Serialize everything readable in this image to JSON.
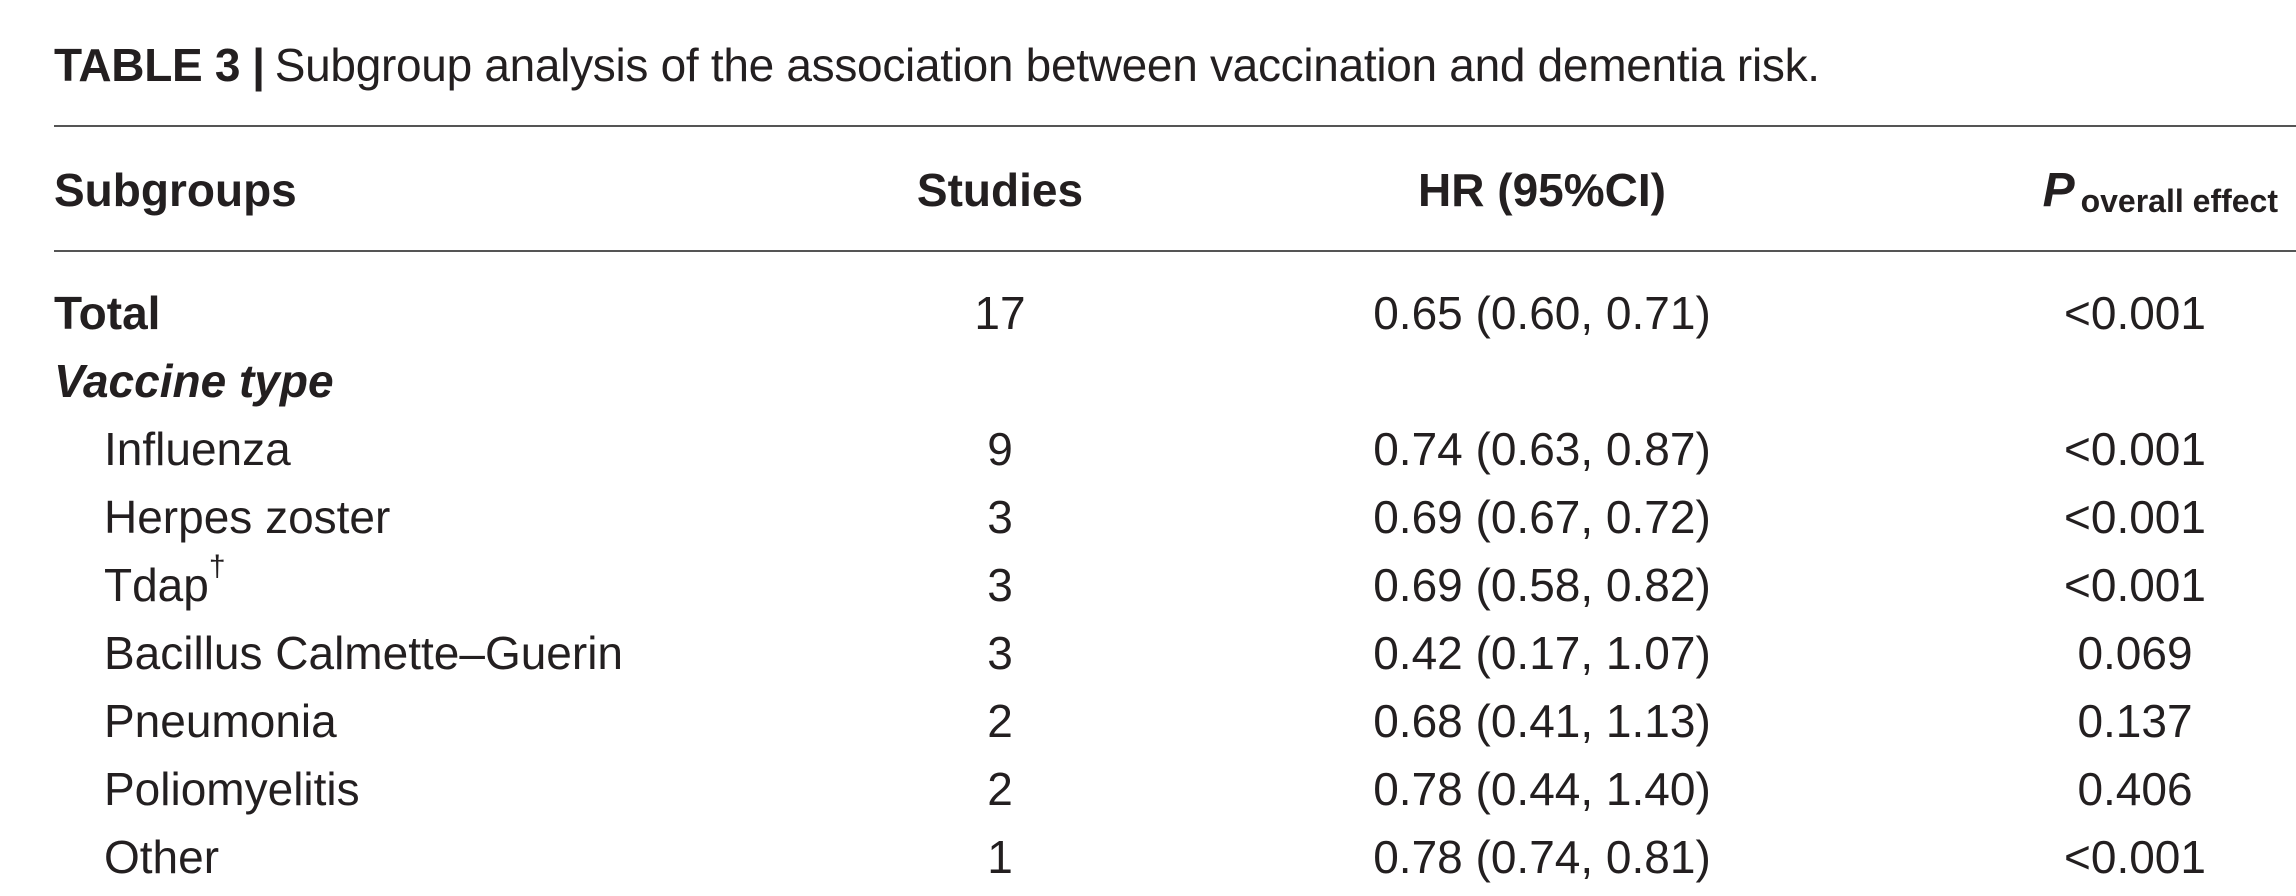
{
  "caption": {
    "tag": "TABLE 3",
    "separator": "|",
    "text": "Subgroup analysis of the association between vaccination and dementia risk."
  },
  "table": {
    "headers": {
      "subgroups": "Subgroups",
      "studies": "Studies",
      "hr": "HR (95%CI)",
      "p_main": "P",
      "p_sub": "overall effect"
    },
    "total": {
      "label": "Total",
      "studies": "17",
      "hr": "0.65 (0.60, 0.71)",
      "p": "<0.001"
    },
    "section_label": "Vaccine type",
    "rows": [
      {
        "label": "Influenza",
        "mark": "",
        "studies": "9",
        "hr": "0.74 (0.63, 0.87)",
        "p": "<0.001"
      },
      {
        "label": "Herpes zoster",
        "mark": "",
        "studies": "3",
        "hr": "0.69 (0.67, 0.72)",
        "p": "<0.001"
      },
      {
        "label": "Tdap",
        "mark": "†",
        "studies": "3",
        "hr": "0.69 (0.58, 0.82)",
        "p": "<0.001"
      },
      {
        "label": "Bacillus Calmette–Guerin",
        "mark": "",
        "studies": "3",
        "hr": "0.42 (0.17, 1.07)",
        "p": "0.069"
      },
      {
        "label": "Pneumonia",
        "mark": "",
        "studies": "2",
        "hr": "0.68 (0.41, 1.13)",
        "p": "0.137"
      },
      {
        "label": "Poliomyelitis",
        "mark": "",
        "studies": "2",
        "hr": "0.78 (0.44, 1.40)",
        "p": "0.406"
      },
      {
        "label": "Other",
        "mark": "",
        "studies": "1",
        "hr": "0.78 (0.74, 0.81)",
        "p": "<0.001"
      }
    ]
  }
}
